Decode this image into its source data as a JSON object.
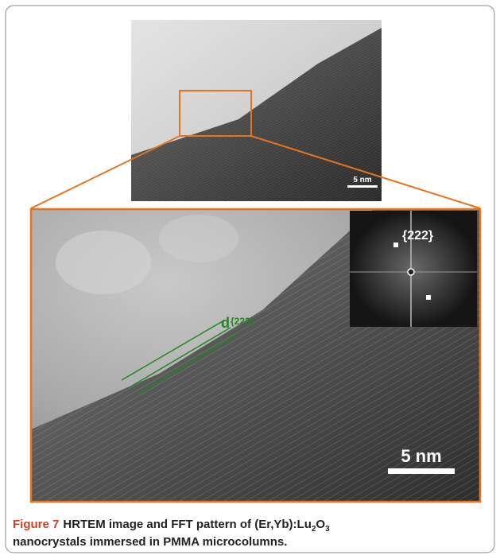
{
  "figure": {
    "top_scale_bar": "5 nm",
    "spacing_label": {
      "main": "d",
      "sub": "{222}"
    },
    "fft_label": "{222}",
    "main_scale_bar": "5 nm"
  },
  "caption": {
    "label": "Figure 7",
    "text": "HRTEM image and FFT pattern of (Er,Yb):Lu",
    "sub1": "2",
    "text2": "O",
    "sub2": "3",
    "text3": "nanocrystals immersed in PMMA microcolumns."
  }
}
